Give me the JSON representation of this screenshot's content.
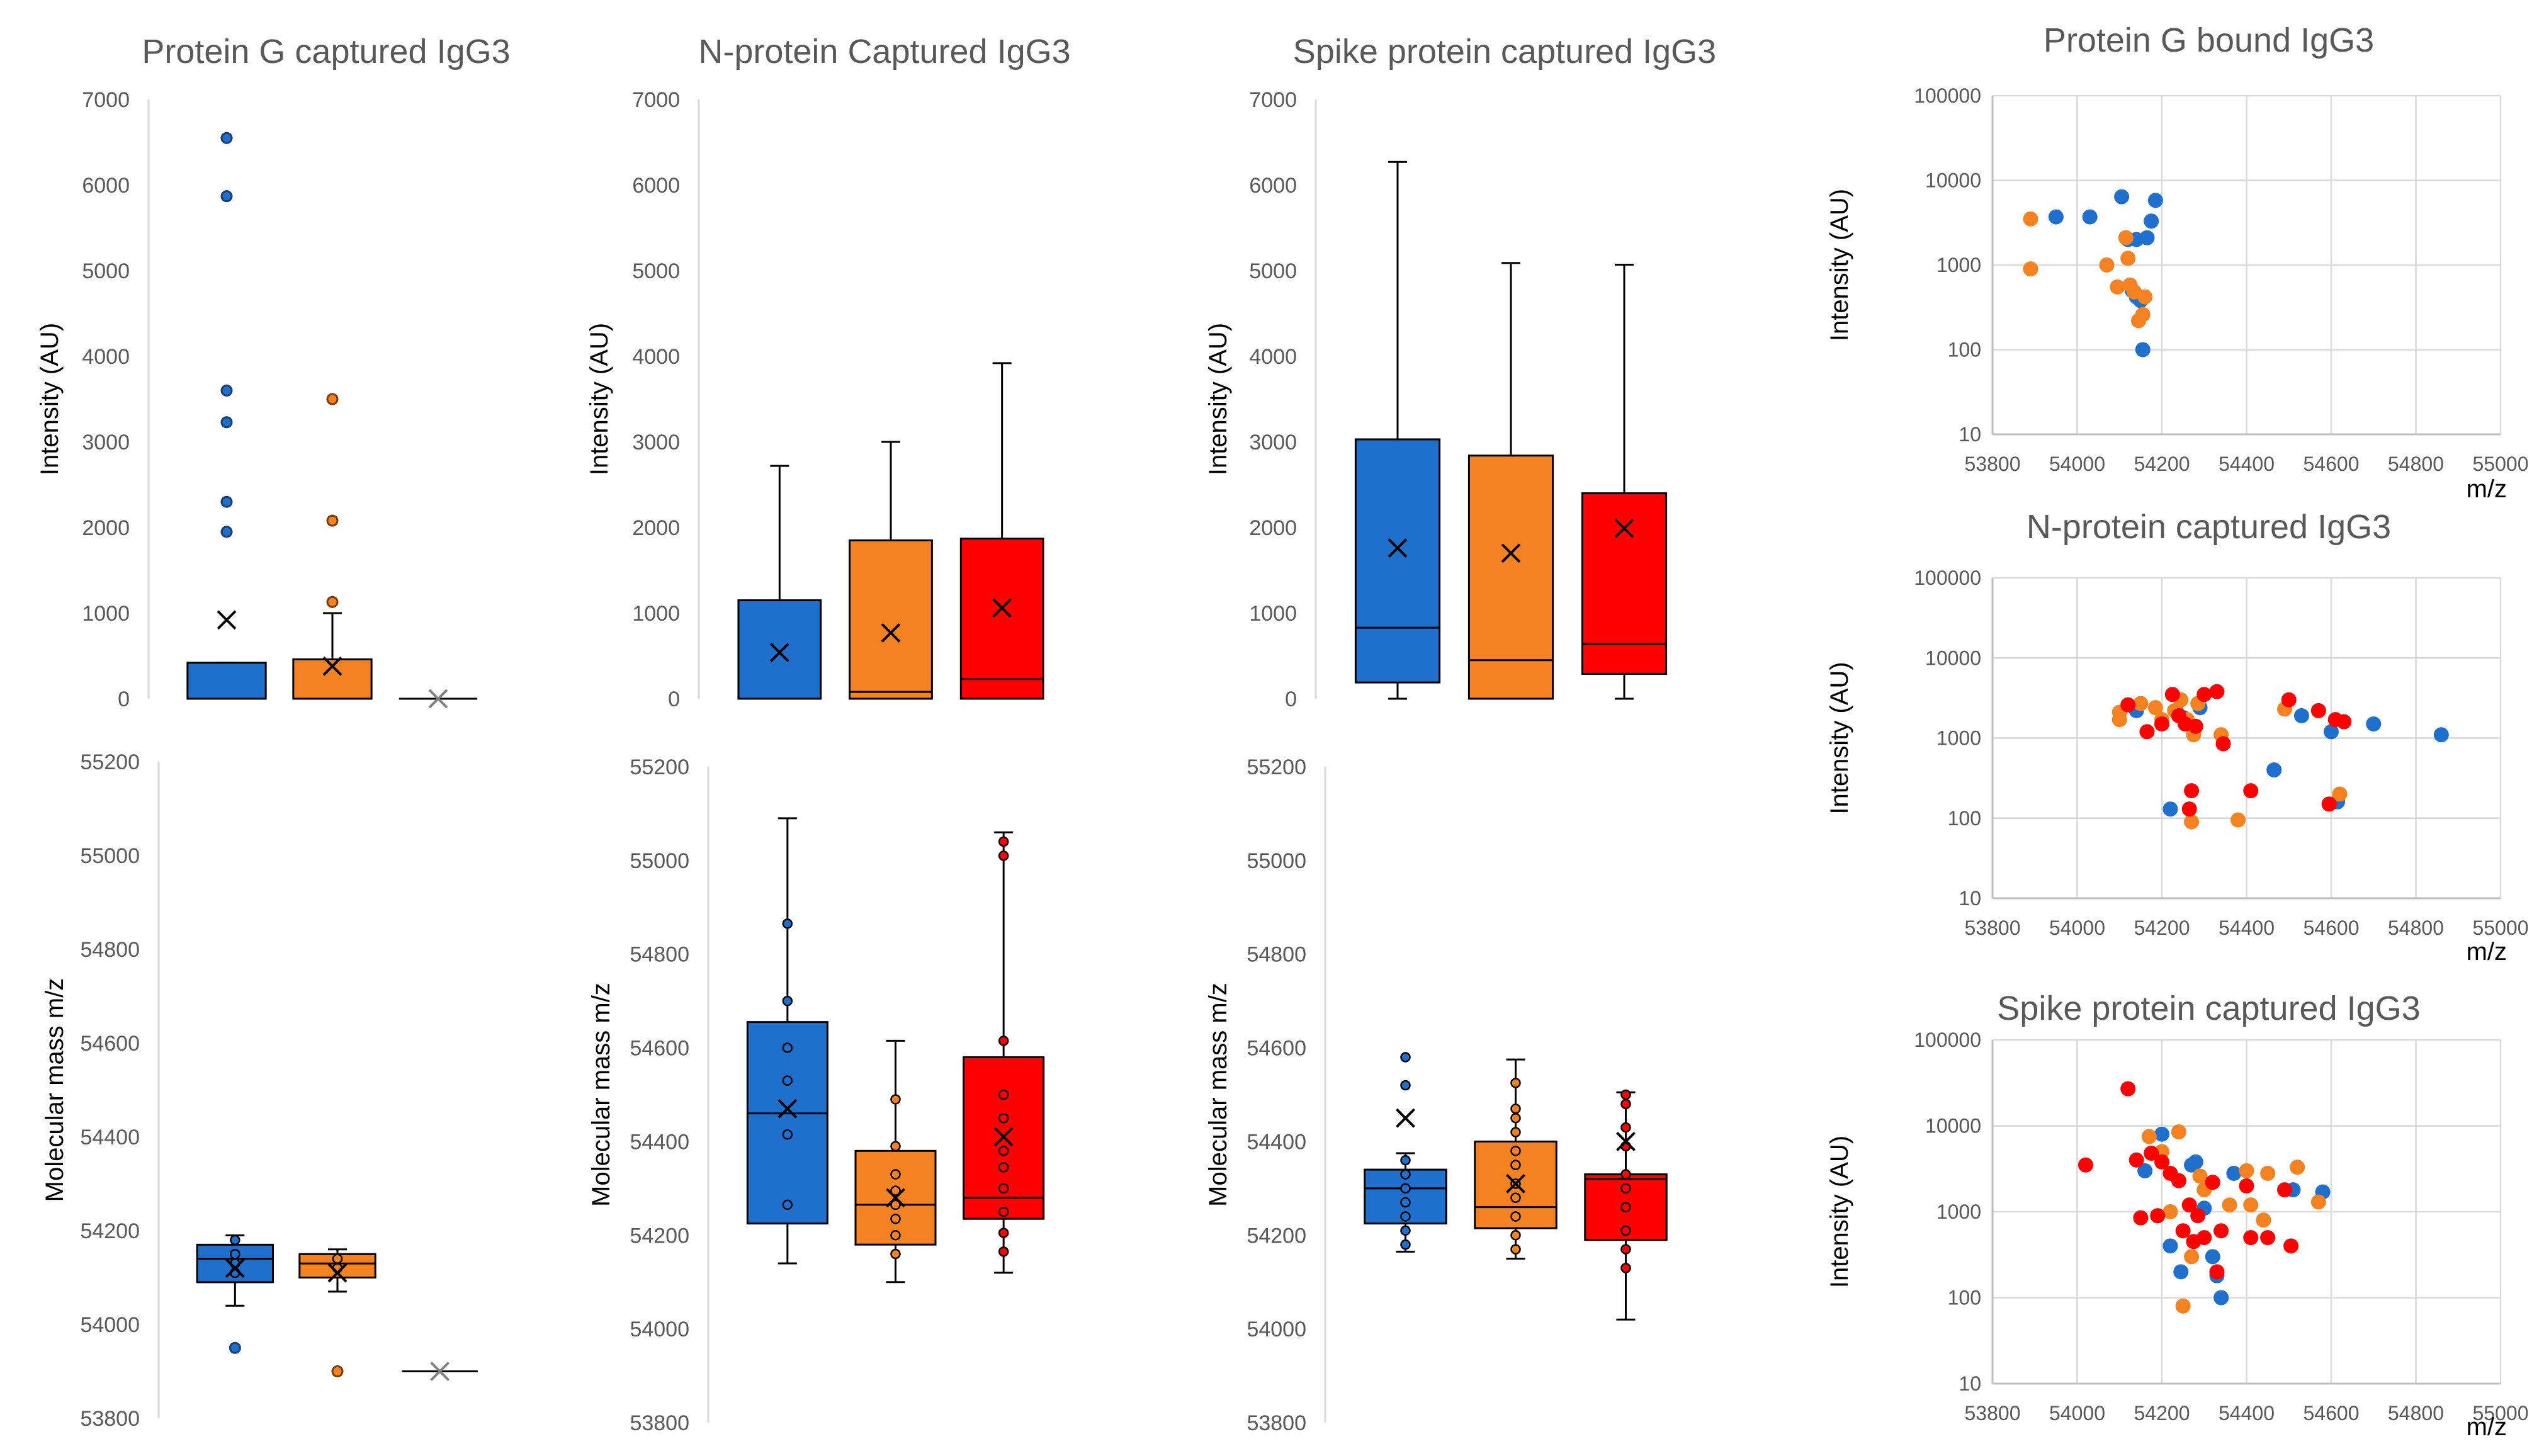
{
  "colors": {
    "blue": "#1f6fcc",
    "orange": "#f58220",
    "red": "#ff0000",
    "grid": "#d9d9d9",
    "axis": "#595959",
    "text": "#595959"
  },
  "chart_data": [
    {
      "id": "box_int_proteinG",
      "type": "box",
      "title": "Protein G captured IgG3",
      "xlabel": "",
      "ylabel": "Intensity (AU)",
      "ylim": [
        0,
        7000
      ],
      "yticks": [
        0,
        1000,
        2000,
        3000,
        4000,
        5000,
        6000,
        7000
      ],
      "boxes": [
        {
          "color": "blue",
          "min": 0,
          "q1": 0,
          "median": 0,
          "q3": 420,
          "max": 420,
          "mean": 920,
          "points": [],
          "outliers": [
            1950,
            2300,
            3230,
            3600,
            5870,
            6550
          ]
        },
        {
          "color": "orange",
          "min": 0,
          "q1": 0,
          "median": 0,
          "q3": 460,
          "max": 1000,
          "mean": 380,
          "points": [],
          "outliers": [
            1130,
            2080,
            3500
          ]
        },
        {
          "color": "grey",
          "min": 0,
          "q1": 0,
          "median": 0,
          "q3": 0,
          "max": 0,
          "mean": 0,
          "points": [],
          "outliers": []
        }
      ]
    },
    {
      "id": "box_int_nprotein",
      "type": "box",
      "title": "N-protein Captured IgG3",
      "xlabel": "",
      "ylabel": "Intensity (AU)",
      "ylim": [
        0,
        7000
      ],
      "yticks": [
        0,
        1000,
        2000,
        3000,
        4000,
        5000,
        6000,
        7000
      ],
      "boxes": [
        {
          "color": "blue",
          "min": 0,
          "q1": 0,
          "median": 0,
          "q3": 1150,
          "max": 2720,
          "mean": 540,
          "points": [],
          "outliers": []
        },
        {
          "color": "orange",
          "min": 0,
          "q1": 0,
          "median": 80,
          "q3": 1850,
          "max": 3000,
          "mean": 770,
          "points": [],
          "outliers": []
        },
        {
          "color": "red",
          "min": 0,
          "q1": 0,
          "median": 230,
          "q3": 1870,
          "max": 3920,
          "mean": 1060,
          "points": [],
          "outliers": []
        }
      ]
    },
    {
      "id": "box_int_spike",
      "type": "box",
      "title": "Spike protein captured IgG3",
      "xlabel": "",
      "ylabel": "Intensity (AU)",
      "ylim": [
        0,
        7000
      ],
      "yticks": [
        0,
        1000,
        2000,
        3000,
        4000,
        5000,
        6000,
        7000
      ],
      "boxes": [
        {
          "color": "blue",
          "min": 0,
          "q1": 190,
          "median": 830,
          "q3": 3030,
          "max": 6270,
          "mean": 1760,
          "points": [],
          "outliers": []
        },
        {
          "color": "orange",
          "min": 0,
          "q1": 0,
          "median": 450,
          "q3": 2840,
          "max": 5090,
          "mean": 1700,
          "points": [],
          "outliers": []
        },
        {
          "color": "red",
          "min": 0,
          "q1": 290,
          "median": 640,
          "q3": 2400,
          "max": 5070,
          "mean": 1990,
          "points": [],
          "outliers": []
        }
      ]
    },
    {
      "id": "box_mass_proteinG",
      "type": "box",
      "title": "",
      "xlabel": "",
      "ylabel": "Molecular mass m/z",
      "ylim": [
        53800,
        55200
      ],
      "yticks": [
        53800,
        54000,
        54200,
        54400,
        54600,
        54800,
        55000,
        55200
      ],
      "boxes": [
        {
          "color": "blue",
          "min": 54040,
          "q1": 54090,
          "median": 54140,
          "q3": 54170,
          "max": 54190,
          "mean": 54120,
          "points": [
            54110,
            54130,
            54150,
            54180
          ],
          "outliers": [
            53950
          ]
        },
        {
          "color": "orange",
          "min": 54070,
          "q1": 54100,
          "median": 54130,
          "q3": 54150,
          "max": 54160,
          "mean": 54110,
          "points": [
            54120,
            54140
          ],
          "outliers": [
            53900
          ]
        },
        {
          "color": "grey",
          "min": 53900,
          "q1": 53900,
          "median": 53900,
          "q3": 53900,
          "max": 53900,
          "mean": 53900,
          "points": [],
          "outliers": []
        }
      ]
    },
    {
      "id": "box_mass_nprotein",
      "type": "box",
      "title": "",
      "xlabel": "",
      "ylabel": "Molecular mass m/z",
      "ylim": [
        53800,
        55200
      ],
      "yticks": [
        53800,
        54000,
        54200,
        54400,
        54600,
        54800,
        55000,
        55200
      ],
      "boxes": [
        {
          "color": "blue",
          "min": 54140,
          "q1": 54225,
          "median": 54460,
          "q3": 54655,
          "max": 55090,
          "mean": 54470,
          "points": [
            54265,
            54415,
            54530,
            54600,
            54700,
            54865
          ],
          "outliers": []
        },
        {
          "color": "orange",
          "min": 54100,
          "q1": 54180,
          "median": 54265,
          "q3": 54380,
          "max": 54615,
          "mean": 54280,
          "points": [
            54160,
            54200,
            54235,
            54265,
            54295,
            54330,
            54390,
            54490
          ],
          "outliers": []
        },
        {
          "color": "red",
          "min": 54120,
          "q1": 54235,
          "median": 54280,
          "q3": 54580,
          "max": 55060,
          "mean": 54410,
          "points": [
            54165,
            54205,
            54250,
            54300,
            54345,
            54380,
            54450,
            54500,
            54615,
            55010,
            55040
          ],
          "outliers": []
        }
      ]
    },
    {
      "id": "box_mass_spike",
      "type": "box",
      "title": "",
      "xlabel": "",
      "ylabel": "Molecular mass m/z",
      "ylim": [
        53800,
        55200
      ],
      "yticks": [
        53800,
        54000,
        54200,
        54400,
        54600,
        54800,
        55000,
        55200
      ],
      "boxes": [
        {
          "color": "blue",
          "min": 54165,
          "q1": 54225,
          "median": 54300,
          "q3": 54340,
          "max": 54375,
          "mean": 54450,
          "points": [
            54180,
            54210,
            54240,
            54270,
            54300,
            54330,
            54360,
            54520,
            54580
          ],
          "outliers": []
        },
        {
          "color": "orange",
          "min": 54150,
          "q1": 54215,
          "median": 54260,
          "q3": 54400,
          "max": 54575,
          "mean": 54310,
          "points": [
            54170,
            54200,
            54240,
            54280,
            54310,
            54350,
            54380,
            54420,
            54450,
            54470,
            54525
          ],
          "outliers": []
        },
        {
          "color": "red",
          "min": 54020,
          "q1": 54190,
          "median": 54320,
          "q3": 54330,
          "max": 54505,
          "mean": 54400,
          "points": [
            54130,
            54170,
            54210,
            54260,
            54300,
            54330,
            54390,
            54430,
            54480,
            54500
          ],
          "outliers": []
        }
      ]
    },
    {
      "id": "scatter_proteinG",
      "type": "scatter",
      "title": "Protein G bound IgG3",
      "xlabel": "m/z",
      "ylabel": "Intensity (AU)",
      "xlim": [
        53800,
        55000
      ],
      "xticks": [
        53800,
        54000,
        54200,
        54400,
        54600,
        54800,
        55000
      ],
      "ylim": [
        10,
        100000
      ],
      "yscale": "log",
      "yticks": [
        10,
        100,
        1000,
        10000,
        100000
      ],
      "grid": true,
      "series": [
        {
          "color": "blue",
          "points": [
            [
              53950,
              3700
            ],
            [
              54030,
              3700
            ],
            [
              54105,
              6400
            ],
            [
              54140,
              2000
            ],
            [
              54165,
              2100
            ],
            [
              54175,
              3300
            ],
            [
              54185,
              5800
            ],
            [
              54130,
              500
            ],
            [
              54140,
              420
            ],
            [
              54150,
              380
            ],
            [
              54155,
              100
            ],
            [
              54120,
              2000
            ]
          ]
        },
        {
          "color": "orange",
          "points": [
            [
              53890,
              3500
            ],
            [
              53890,
              900
            ],
            [
              54070,
              1000
            ],
            [
              54095,
              550
            ],
            [
              54115,
              2100
            ],
            [
              54120,
              1200
            ],
            [
              54125,
              580
            ],
            [
              54135,
              480
            ],
            [
              54145,
              220
            ],
            [
              54155,
              260
            ],
            [
              54160,
              420
            ]
          ]
        }
      ]
    },
    {
      "id": "scatter_nprotein",
      "type": "scatter",
      "title": "N-protein captured IgG3",
      "xlabel": "m/z",
      "ylabel": "Intensity (AU)",
      "xlim": [
        53800,
        55000
      ],
      "xticks": [
        53800,
        54000,
        54200,
        54400,
        54600,
        54800,
        55000
      ],
      "ylim": [
        10,
        100000
      ],
      "yscale": "log",
      "yticks": [
        10,
        100,
        1000,
        10000,
        100000
      ],
      "grid": true,
      "series": [
        {
          "color": "blue",
          "points": [
            [
              54140,
              2200
            ],
            [
              54220,
              130
            ],
            [
              54235,
              2100
            ],
            [
              54250,
              1800
            ],
            [
              54290,
              2400
            ],
            [
              54465,
              400
            ],
            [
              54530,
              1900
            ],
            [
              54600,
              1200
            ],
            [
              54615,
              160
            ],
            [
              54700,
              1500
            ],
            [
              54860,
              1100
            ]
          ]
        },
        {
          "color": "orange",
          "points": [
            [
              54100,
              1700
            ],
            [
              54100,
              2100
            ],
            [
              54150,
              2700
            ],
            [
              54185,
              2400
            ],
            [
              54200,
              1700
            ],
            [
              54230,
              2200
            ],
            [
              54245,
              3000
            ],
            [
              54260,
              1700
            ],
            [
              54270,
              90
            ],
            [
              54275,
              1100
            ],
            [
              54285,
              2700
            ],
            [
              54340,
              1100
            ],
            [
              54380,
              95
            ],
            [
              54490,
              2300
            ],
            [
              54620,
              200
            ]
          ]
        },
        {
          "color": "red",
          "points": [
            [
              54120,
              2600
            ],
            [
              54165,
              1200
            ],
            [
              54200,
              1500
            ],
            [
              54225,
              3500
            ],
            [
              54240,
              1900
            ],
            [
              54255,
              1500
            ],
            [
              54265,
              130
            ],
            [
              54270,
              220
            ],
            [
              54280,
              1400
            ],
            [
              54300,
              3500
            ],
            [
              54330,
              3800
            ],
            [
              54345,
              850
            ],
            [
              54410,
              220
            ],
            [
              54500,
              3000
            ],
            [
              54570,
              2200
            ],
            [
              54595,
              150
            ],
            [
              54610,
              1700
            ],
            [
              54630,
              1600
            ]
          ]
        }
      ]
    },
    {
      "id": "scatter_spike",
      "type": "scatter",
      "title": "Spike protein captured IgG3",
      "xlabel": "m/z",
      "ylabel": "Intensity (AU)",
      "xlim": [
        53800,
        55000
      ],
      "xticks": [
        53800,
        54000,
        54200,
        54400,
        54600,
        54800,
        55000
      ],
      "ylim": [
        10,
        100000
      ],
      "yscale": "log",
      "yticks": [
        10,
        100,
        1000,
        10000,
        100000
      ],
      "grid": true,
      "series": [
        {
          "color": "blue",
          "points": [
            [
              54160,
              3000
            ],
            [
              54200,
              8000
            ],
            [
              54220,
              400
            ],
            [
              54245,
              200
            ],
            [
              54270,
              3500
            ],
            [
              54280,
              3800
            ],
            [
              54300,
              1100
            ],
            [
              54320,
              300
            ],
            [
              54330,
              180
            ],
            [
              54340,
              100
            ],
            [
              54370,
              2800
            ],
            [
              54510,
              1800
            ],
            [
              54580,
              1700
            ]
          ]
        },
        {
          "color": "orange",
          "points": [
            [
              54170,
              7500
            ],
            [
              54200,
              5000
            ],
            [
              54220,
              1000
            ],
            [
              54240,
              8500
            ],
            [
              54250,
              80
            ],
            [
              54270,
              300
            ],
            [
              54290,
              2600
            ],
            [
              54300,
              1800
            ],
            [
              54360,
              1200
            ],
            [
              54400,
              3000
            ],
            [
              54410,
              1200
            ],
            [
              54440,
              800
            ],
            [
              54450,
              2800
            ],
            [
              54520,
              3300
            ],
            [
              54570,
              1300
            ]
          ]
        },
        {
          "color": "red",
          "points": [
            [
              54020,
              3500
            ],
            [
              54120,
              27000
            ],
            [
              54140,
              4000
            ],
            [
              54150,
              850
            ],
            [
              54175,
              4800
            ],
            [
              54190,
              900
            ],
            [
              54200,
              3800
            ],
            [
              54220,
              2800
            ],
            [
              54240,
              2300
            ],
            [
              54250,
              600
            ],
            [
              54265,
              1200
            ],
            [
              54275,
              450
            ],
            [
              54285,
              900
            ],
            [
              54300,
              500
            ],
            [
              54320,
              2200
            ],
            [
              54330,
              200
            ],
            [
              54340,
              600
            ],
            [
              54400,
              2000
            ],
            [
              54410,
              500
            ],
            [
              54450,
              500
            ],
            [
              54490,
              1800
            ],
            [
              54505,
              400
            ]
          ]
        }
      ]
    }
  ]
}
